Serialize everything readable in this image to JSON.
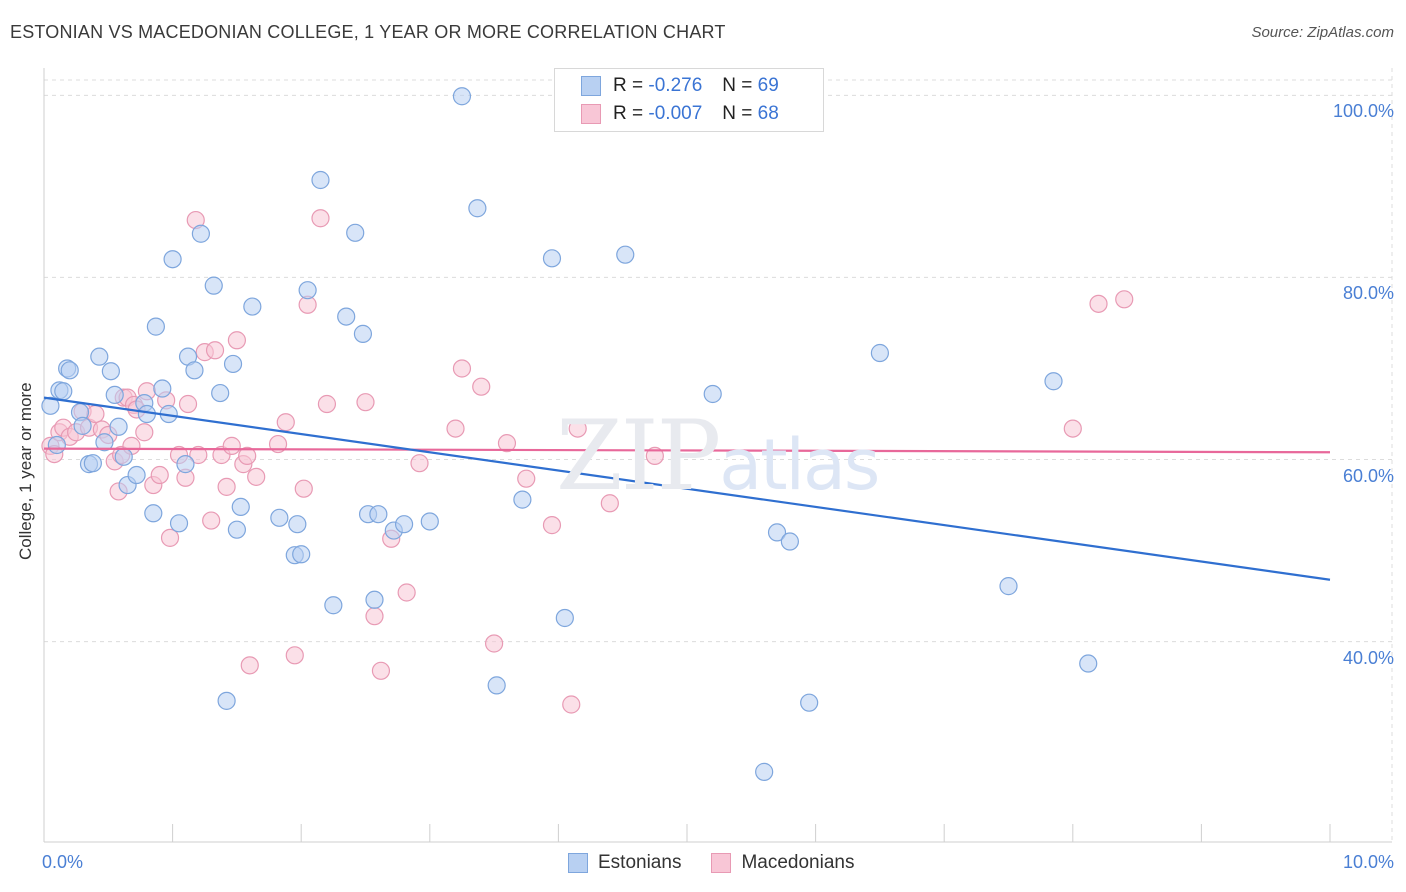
{
  "title": "ESTONIAN VS MACEDONIAN COLLEGE, 1 YEAR OR MORE CORRELATION CHART",
  "source": "Source: ZipAtlas.com",
  "watermark": {
    "big": "ZIP",
    "small": "atlas"
  },
  "colors": {
    "blue_fill": "#b8d0f2",
    "blue_stroke": "#7ea6dd",
    "blue_line": "#2f6fd0",
    "pink_fill": "#f8c6d6",
    "pink_stroke": "#e89ab4",
    "pink_line": "#e8689a",
    "grid": "#dcdcdc",
    "tick_text": "#4a7fd4"
  },
  "legend": {
    "rows": [
      {
        "r_label": "R = ",
        "r_value": "-0.276",
        "n_label": "N = ",
        "n_value": "69",
        "series": "blue"
      },
      {
        "r_label": "R = ",
        "r_value": "-0.007",
        "n_label": "N = ",
        "n_value": "68",
        "series": "pink"
      }
    ]
  },
  "bottom_legend": [
    {
      "label": "Estonians",
      "series": "blue"
    },
    {
      "label": "Macedonians",
      "series": "pink"
    }
  ],
  "chart_data": {
    "type": "scatter",
    "title": "ESTONIAN VS MACEDONIAN COLLEGE, 1 YEAR OR MORE CORRELATION CHART",
    "xlabel": "",
    "ylabel": "College, 1 year or more",
    "xlim": [
      0,
      10
    ],
    "ylim": [
      18,
      103
    ],
    "y_ticks": [
      {
        "value": 40,
        "label": "40.0%"
      },
      {
        "value": 60,
        "label": "60.0%"
      },
      {
        "value": 80,
        "label": "80.0%"
      },
      {
        "value": 100,
        "label": "100.0%"
      }
    ],
    "x_ticks": [
      {
        "value": 0,
        "label": "0.0%"
      },
      {
        "value": 10,
        "label": "10.0%"
      }
    ],
    "x_minor_ticks": [
      1,
      2,
      3,
      4,
      5,
      6,
      7,
      8,
      9,
      10
    ],
    "grid": true,
    "series": [
      {
        "name": "Estonians",
        "color": "blue",
        "trend": {
          "x": [
            0,
            10
          ],
          "y": [
            66.8,
            46.8
          ]
        },
        "points": [
          [
            0.05,
            65.9
          ],
          [
            0.1,
            61.6
          ],
          [
            0.12,
            67.6
          ],
          [
            0.15,
            67.5
          ],
          [
            0.18,
            70.0
          ],
          [
            0.2,
            69.8
          ],
          [
            0.28,
            65.2
          ],
          [
            0.3,
            63.7
          ],
          [
            0.35,
            59.5
          ],
          [
            0.38,
            59.6
          ],
          [
            0.43,
            71.3
          ],
          [
            0.47,
            61.9
          ],
          [
            0.52,
            69.7
          ],
          [
            0.55,
            67.1
          ],
          [
            0.58,
            63.6
          ],
          [
            0.62,
            60.3
          ],
          [
            0.65,
            57.2
          ],
          [
            0.72,
            58.3
          ],
          [
            0.78,
            66.2
          ],
          [
            0.8,
            65.0
          ],
          [
            0.85,
            54.1
          ],
          [
            0.87,
            74.6
          ],
          [
            0.92,
            67.8
          ],
          [
            0.97,
            65.0
          ],
          [
            1.0,
            82.0
          ],
          [
            1.05,
            53.0
          ],
          [
            1.1,
            59.5
          ],
          [
            1.12,
            71.3
          ],
          [
            1.17,
            69.8
          ],
          [
            1.22,
            84.8
          ],
          [
            1.32,
            79.1
          ],
          [
            1.37,
            67.3
          ],
          [
            1.42,
            33.5
          ],
          [
            1.47,
            70.5
          ],
          [
            1.5,
            52.3
          ],
          [
            1.53,
            54.8
          ],
          [
            1.62,
            76.8
          ],
          [
            1.83,
            53.6
          ],
          [
            1.95,
            49.5
          ],
          [
            1.97,
            52.9
          ],
          [
            2.0,
            49.6
          ],
          [
            2.05,
            78.6
          ],
          [
            2.15,
            90.7
          ],
          [
            2.25,
            44.0
          ],
          [
            2.35,
            75.7
          ],
          [
            2.42,
            84.9
          ],
          [
            2.48,
            73.8
          ],
          [
            2.52,
            54.0
          ],
          [
            2.57,
            44.6
          ],
          [
            2.6,
            54.0
          ],
          [
            2.72,
            52.2
          ],
          [
            2.8,
            52.9
          ],
          [
            3.0,
            53.2
          ],
          [
            3.25,
            99.9
          ],
          [
            3.37,
            87.6
          ],
          [
            3.52,
            35.2
          ],
          [
            3.72,
            55.6
          ],
          [
            3.95,
            82.1
          ],
          [
            4.05,
            42.6
          ],
          [
            4.52,
            82.5
          ],
          [
            5.2,
            67.2
          ],
          [
            5.6,
            25.7
          ],
          [
            5.7,
            52.0
          ],
          [
            5.8,
            51.0
          ],
          [
            5.95,
            33.3
          ],
          [
            6.5,
            71.7
          ],
          [
            7.5,
            46.1
          ],
          [
            7.85,
            68.6
          ],
          [
            8.12,
            37.6
          ]
        ]
      },
      {
        "name": "Macedonians",
        "color": "pink",
        "trend": {
          "x": [
            0,
            10
          ],
          "y": [
            61.2,
            60.8
          ]
        },
        "points": [
          [
            0.05,
            61.5
          ],
          [
            0.08,
            60.6
          ],
          [
            0.12,
            63.0
          ],
          [
            0.15,
            63.5
          ],
          [
            0.2,
            62.5
          ],
          [
            0.25,
            63.0
          ],
          [
            0.3,
            65.3
          ],
          [
            0.35,
            63.5
          ],
          [
            0.4,
            65.0
          ],
          [
            0.45,
            63.3
          ],
          [
            0.5,
            62.7
          ],
          [
            0.55,
            59.8
          ],
          [
            0.58,
            56.5
          ],
          [
            0.6,
            60.5
          ],
          [
            0.62,
            66.8
          ],
          [
            0.65,
            66.8
          ],
          [
            0.68,
            61.5
          ],
          [
            0.7,
            66.0
          ],
          [
            0.72,
            65.5
          ],
          [
            0.78,
            63.0
          ],
          [
            0.8,
            67.5
          ],
          [
            0.85,
            57.2
          ],
          [
            0.9,
            58.3
          ],
          [
            0.95,
            66.5
          ],
          [
            0.98,
            51.4
          ],
          [
            1.05,
            60.5
          ],
          [
            1.1,
            58.0
          ],
          [
            1.12,
            66.1
          ],
          [
            1.18,
            86.3
          ],
          [
            1.2,
            60.5
          ],
          [
            1.25,
            71.8
          ],
          [
            1.3,
            53.3
          ],
          [
            1.33,
            72.0
          ],
          [
            1.38,
            60.5
          ],
          [
            1.42,
            57.0
          ],
          [
            1.46,
            61.5
          ],
          [
            1.5,
            73.1
          ],
          [
            1.55,
            59.5
          ],
          [
            1.58,
            60.4
          ],
          [
            1.6,
            37.4
          ],
          [
            1.65,
            58.1
          ],
          [
            1.82,
            61.7
          ],
          [
            1.88,
            64.1
          ],
          [
            1.95,
            38.5
          ],
          [
            2.02,
            56.8
          ],
          [
            2.05,
            77.0
          ],
          [
            2.15,
            86.5
          ],
          [
            2.2,
            66.1
          ],
          [
            2.5,
            66.3
          ],
          [
            2.57,
            42.8
          ],
          [
            2.62,
            36.8
          ],
          [
            2.7,
            51.3
          ],
          [
            2.82,
            45.4
          ],
          [
            2.92,
            59.6
          ],
          [
            3.2,
            63.4
          ],
          [
            3.25,
            70.0
          ],
          [
            3.4,
            68.0
          ],
          [
            3.5,
            39.8
          ],
          [
            3.6,
            61.8
          ],
          [
            3.75,
            57.9
          ],
          [
            3.95,
            52.8
          ],
          [
            4.1,
            33.1
          ],
          [
            4.15,
            63.4
          ],
          [
            4.4,
            55.2
          ],
          [
            4.75,
            60.4
          ],
          [
            8.0,
            63.4
          ],
          [
            8.2,
            77.1
          ],
          [
            8.4,
            77.6
          ]
        ]
      }
    ]
  }
}
